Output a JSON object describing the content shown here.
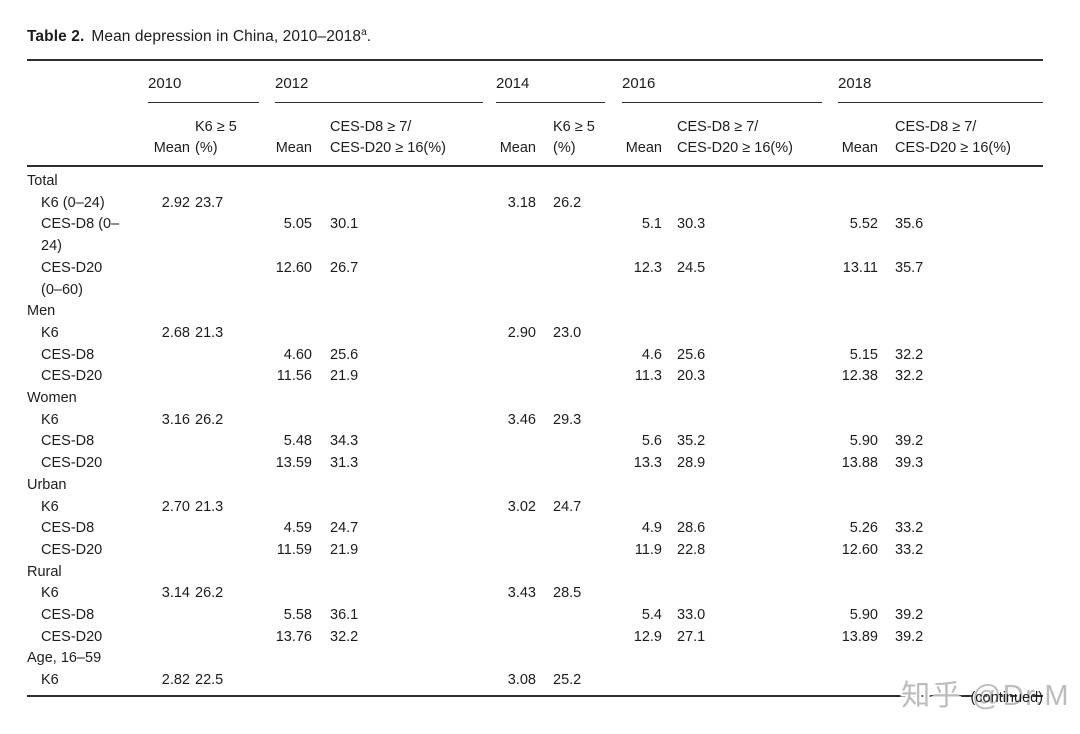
{
  "title": {
    "label": "Table 2.",
    "text": "Mean depression in China, 2010–2018",
    "superscript": "a",
    "period": "."
  },
  "table": {
    "groups": [
      {
        "year": "2010",
        "mean_header": "Mean",
        "pct_header": "K6 ≥ 5\n(%)"
      },
      {
        "year": "2012",
        "mean_header": "Mean",
        "pct_header": "CES-D8 ≥ 7/\nCES-D20 ≥ 16(%)"
      },
      {
        "year": "2014",
        "mean_header": "Mean",
        "pct_header": "K6 ≥ 5\n(%)"
      },
      {
        "year": "2016",
        "mean_header": "Mean",
        "pct_header": "CES-D8 ≥ 7/\nCES-D20 ≥ 16(%)"
      },
      {
        "year": "2018",
        "mean_header": "Mean",
        "pct_header": "CES-D8 ≥ 7/\nCES-D20 ≥ 16(%)"
      }
    ],
    "rows": [
      {
        "type": "section",
        "label": "Total"
      },
      {
        "type": "data",
        "label": "K6 (0–24)",
        "cells": [
          "2.92",
          "23.7",
          "",
          "",
          "3.18",
          "26.2",
          "",
          "",
          "",
          ""
        ]
      },
      {
        "type": "data",
        "label": "CES-D8 (0–\n24)",
        "cells": [
          "",
          "",
          "5.05",
          "30.1",
          "",
          "",
          "5.1",
          "30.3",
          "5.52",
          "35.6"
        ]
      },
      {
        "type": "data",
        "label": "CES-D20\n(0–60)",
        "cells": [
          "",
          "",
          "12.60",
          "26.7",
          "",
          "",
          "12.3",
          "24.5",
          "13.11",
          "35.7"
        ]
      },
      {
        "type": "section",
        "label": "Men"
      },
      {
        "type": "data",
        "label": "K6",
        "cells": [
          "2.68",
          "21.3",
          "",
          "",
          "2.90",
          "23.0",
          "",
          "",
          "",
          ""
        ]
      },
      {
        "type": "data",
        "label": "CES-D8",
        "cells": [
          "",
          "",
          "4.60",
          "25.6",
          "",
          "",
          "4.6",
          "25.6",
          "5.15",
          "32.2"
        ]
      },
      {
        "type": "data",
        "label": "CES-D20",
        "cells": [
          "",
          "",
          "11.56",
          "21.9",
          "",
          "",
          "11.3",
          "20.3",
          "12.38",
          "32.2"
        ]
      },
      {
        "type": "section",
        "label": "Women"
      },
      {
        "type": "data",
        "label": "K6",
        "cells": [
          "3.16",
          "26.2",
          "",
          "",
          "3.46",
          "29.3",
          "",
          "",
          "",
          ""
        ]
      },
      {
        "type": "data",
        "label": "CES-D8",
        "cells": [
          "",
          "",
          "5.48",
          "34.3",
          "",
          "",
          "5.6",
          "35.2",
          "5.90",
          "39.2"
        ]
      },
      {
        "type": "data",
        "label": "CES-D20",
        "cells": [
          "",
          "",
          "13.59",
          "31.3",
          "",
          "",
          "13.3",
          "28.9",
          "13.88",
          "39.3"
        ]
      },
      {
        "type": "section",
        "label": "Urban"
      },
      {
        "type": "data",
        "label": "K6",
        "cells": [
          "2.70",
          "21.3",
          "",
          "",
          "3.02",
          "24.7",
          "",
          "",
          "",
          ""
        ]
      },
      {
        "type": "data",
        "label": "CES-D8",
        "cells": [
          "",
          "",
          "4.59",
          "24.7",
          "",
          "",
          "4.9",
          "28.6",
          "5.26",
          "33.2"
        ]
      },
      {
        "type": "data",
        "label": "CES-D20",
        "cells": [
          "",
          "",
          "11.59",
          "21.9",
          "",
          "",
          "11.9",
          "22.8",
          "12.60",
          "33.2"
        ]
      },
      {
        "type": "section",
        "label": "Rural"
      },
      {
        "type": "data",
        "label": "K6",
        "cells": [
          "3.14",
          "26.2",
          "",
          "",
          "3.43",
          "28.5",
          "",
          "",
          "",
          ""
        ]
      },
      {
        "type": "data",
        "label": "CES-D8",
        "cells": [
          "",
          "",
          "5.58",
          "36.1",
          "",
          "",
          "5.4",
          "33.0",
          "5.90",
          "39.2"
        ]
      },
      {
        "type": "data",
        "label": "CES-D20",
        "cells": [
          "",
          "",
          "13.76",
          "32.2",
          "",
          "",
          "12.9",
          "27.1",
          "13.89",
          "39.2"
        ]
      },
      {
        "type": "section",
        "label": "Age, 16–59"
      },
      {
        "type": "data",
        "label": "K6",
        "cells": [
          "2.82",
          "22.5",
          "",
          "",
          "3.08",
          "25.2",
          "",
          "",
          "",
          ""
        ]
      }
    ]
  },
  "footer": {
    "continued": "(continued)"
  },
  "watermark": {
    "text": "知乎 @Dr.M",
    "color": "#bcbcbc"
  },
  "colors": {
    "text": "#1d1d1d",
    "rule": "#2e2e2e",
    "background": "#ffffff"
  }
}
